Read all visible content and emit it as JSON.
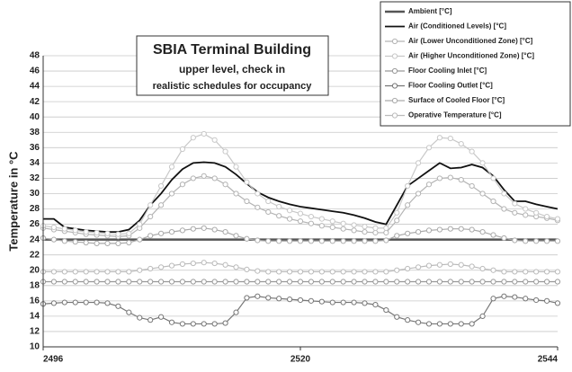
{
  "chart_data": {
    "type": "line",
    "title": "SBIA Terminal Building",
    "subtitle": [
      "upper level, check in",
      "realistic schedules for occupancy"
    ],
    "y_label": "Temperature in °C",
    "x": [
      2496,
      2497,
      2498,
      2499,
      2500,
      2501,
      2502,
      2503,
      2504,
      2505,
      2506,
      2507,
      2508,
      2509,
      2510,
      2511,
      2512,
      2513,
      2514,
      2515,
      2516,
      2517,
      2518,
      2519,
      2520,
      2521,
      2522,
      2523,
      2524,
      2525,
      2526,
      2527,
      2528,
      2529,
      2530,
      2531,
      2532,
      2533,
      2534,
      2535,
      2536,
      2537,
      2538,
      2539,
      2540,
      2541,
      2542,
      2543,
      2544
    ],
    "xlim": [
      2496,
      2544
    ],
    "xticks": [
      2496,
      2520,
      2544
    ],
    "ylim": [
      10,
      48
    ],
    "yticks": [
      10,
      12,
      14,
      16,
      18,
      20,
      22,
      24,
      26,
      28,
      30,
      32,
      34,
      36,
      38,
      40,
      42,
      44,
      46,
      48
    ],
    "grid": true,
    "legend": "upper right",
    "series": [
      {
        "name": "Ambient [°C]",
        "color": "#555555",
        "values": [
          24,
          24,
          24,
          24,
          24,
          24,
          24,
          24,
          24,
          24,
          24,
          24,
          24,
          24,
          24,
          24,
          24,
          24,
          24,
          24,
          24,
          24,
          24,
          24,
          24,
          24,
          24,
          24,
          24,
          24,
          24,
          24,
          24,
          24,
          24,
          24,
          24,
          24,
          24,
          24,
          24,
          24,
          24,
          24,
          24,
          24,
          24,
          24,
          24
        ]
      },
      {
        "name": "Air (Conditioned Levels) [°C]",
        "color": "#111111",
        "values": [
          26.7,
          26.7,
          25.6,
          25.4,
          25.2,
          25.1,
          25.0,
          25.0,
          25.3,
          26.5,
          28.5,
          30.0,
          31.8,
          33.2,
          34.0,
          34.1,
          34.0,
          33.5,
          32.5,
          31.3,
          30.2,
          29.5,
          29.0,
          28.6,
          28.3,
          28.1,
          27.9,
          27.7,
          27.5,
          27.2,
          26.8,
          26.3,
          26.0,
          28.5,
          31.0,
          32.0,
          33.0,
          34.0,
          33.3,
          33.4,
          33.8,
          33.4,
          32.3,
          30.5,
          29.0,
          29.0,
          28.6,
          28.3,
          28.0
        ]
      },
      {
        "name": "Air (Lower Unconditioned Zone) [°C]",
        "color": "#b4b4b4",
        "values": [
          25.5,
          25.3,
          25.1,
          24.9,
          24.7,
          24.6,
          24.5,
          24.4,
          24.5,
          25.5,
          27.0,
          28.5,
          30.0,
          31.2,
          32.0,
          32.3,
          32.0,
          31.2,
          30.0,
          29.0,
          28.2,
          27.6,
          27.1,
          26.7,
          26.4,
          26.1,
          25.8,
          25.6,
          25.4,
          25.2,
          25.0,
          24.9,
          24.9,
          26.5,
          28.5,
          30.0,
          31.2,
          32.0,
          32.1,
          31.8,
          31.0,
          30.0,
          29.0,
          28.0,
          27.5,
          27.2,
          27.0,
          26.8,
          26.5
        ]
      },
      {
        "name": "Air (Higher Unconditioned Zone) [°C]",
        "color": "#c8c8c8",
        "values": [
          25.8,
          25.6,
          25.4,
          25.2,
          25.0,
          24.9,
          24.8,
          24.7,
          24.8,
          26.0,
          28.5,
          31.0,
          33.5,
          35.8,
          37.3,
          37.8,
          37.0,
          35.5,
          33.5,
          31.5,
          30.0,
          29.0,
          28.3,
          27.8,
          27.4,
          27.0,
          26.7,
          26.4,
          26.1,
          25.9,
          25.7,
          25.5,
          25.5,
          27.5,
          31.0,
          34.0,
          36.0,
          37.3,
          37.2,
          36.5,
          35.5,
          34.0,
          32.0,
          30.0,
          28.7,
          28.0,
          27.5,
          27.0,
          26.7
        ]
      },
      {
        "name": "Floor Cooling Inlet [°C]",
        "color": "#999999",
        "values": [
          18.5,
          18.5,
          18.5,
          18.5,
          18.5,
          18.5,
          18.5,
          18.5,
          18.5,
          18.5,
          18.5,
          18.5,
          18.5,
          18.5,
          18.5,
          18.5,
          18.5,
          18.5,
          18.5,
          18.5,
          18.5,
          18.5,
          18.5,
          18.5,
          18.5,
          18.5,
          18.5,
          18.5,
          18.5,
          18.5,
          18.5,
          18.5,
          18.5,
          18.5,
          18.5,
          18.5,
          18.5,
          18.5,
          18.5,
          18.5,
          18.5,
          18.5,
          18.5,
          18.5,
          18.5,
          18.5,
          18.5,
          18.5,
          18.5
        ]
      },
      {
        "name": "Floor Cooling Outlet [°C]",
        "color": "#777777",
        "values": [
          15.6,
          15.7,
          15.8,
          15.8,
          15.8,
          15.8,
          15.7,
          15.3,
          14.5,
          13.8,
          13.5,
          13.9,
          13.2,
          13.0,
          13.0,
          13.0,
          13.0,
          13.1,
          14.5,
          16.4,
          16.6,
          16.4,
          16.3,
          16.2,
          16.1,
          16.0,
          15.9,
          15.8,
          15.8,
          15.8,
          15.7,
          15.5,
          14.8,
          13.9,
          13.5,
          13.2,
          13.0,
          13.0,
          13.0,
          13.0,
          13.0,
          14.0,
          16.3,
          16.6,
          16.5,
          16.3,
          16.1,
          16.0,
          15.7
        ]
      },
      {
        "name": "Surface of Cooled Floor [°C]",
        "color": "#aaaaaa",
        "values": [
          24.2,
          24.0,
          23.8,
          23.7,
          23.6,
          23.5,
          23.5,
          23.5,
          23.6,
          24.0,
          24.5,
          24.8,
          25.0,
          25.2,
          25.4,
          25.5,
          25.3,
          25.0,
          24.5,
          24.1,
          23.9,
          23.8,
          23.8,
          23.8,
          23.8,
          23.8,
          23.8,
          23.8,
          23.8,
          23.8,
          23.8,
          23.8,
          23.9,
          24.5,
          24.8,
          25.0,
          25.2,
          25.3,
          25.4,
          25.4,
          25.3,
          25.0,
          24.6,
          24.2,
          23.9,
          23.8,
          23.8,
          23.8,
          23.8
        ]
      },
      {
        "name": "Operative Temperature [°C]",
        "color": "#bbbbbb",
        "values": [
          19.8,
          19.8,
          19.8,
          19.8,
          19.8,
          19.8,
          19.8,
          19.8,
          19.8,
          20.0,
          20.2,
          20.4,
          20.6,
          20.8,
          20.9,
          21.0,
          20.9,
          20.7,
          20.4,
          20.1,
          19.9,
          19.8,
          19.8,
          19.8,
          19.8,
          19.8,
          19.8,
          19.8,
          19.8,
          19.8,
          19.8,
          19.8,
          19.8,
          20.0,
          20.2,
          20.4,
          20.6,
          20.7,
          20.8,
          20.7,
          20.5,
          20.2,
          20.0,
          19.8,
          19.8,
          19.8,
          19.8,
          19.8,
          19.8
        ]
      }
    ]
  }
}
